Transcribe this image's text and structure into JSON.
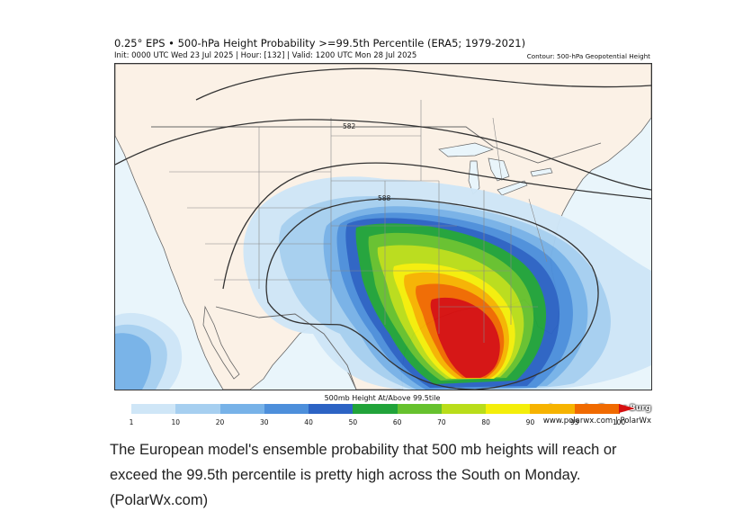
{
  "figure": {
    "title": "0.25° EPS • 500-hPa Height Probability >=99.5th Percentile (ERA5; 1979-2021)",
    "subtitle": "Init: 0000 UTC Wed 23 Jul 2025 | Hour: [132] | Valid: 1200 UTC Mon 28 Jul 2025",
    "contour_note": "Contour: 500-hPa Geopotential Height",
    "credit_line1": "Images by Tomer Burg",
    "credit_line2": "www.polarwx.com | PolarWx"
  },
  "map": {
    "contour_labels": [
      "582",
      "588"
    ],
    "colors": {
      "land": "#fbf1e6",
      "ocean": "#e9f5fb",
      "border": "#777777",
      "contour": "#333333"
    }
  },
  "colorbar": {
    "title": "500mb Height At/Above 99.5tile",
    "ticks": [
      "1",
      "10",
      "20",
      "30",
      "40",
      "50",
      "60",
      "70",
      "80",
      "90",
      "95",
      "100"
    ],
    "colors": [
      "#cfe6f7",
      "#a6cff0",
      "#77b2e8",
      "#4d8fdb",
      "#2c63c4",
      "#21a33a",
      "#66c12e",
      "#b9dd1a",
      "#f4ee0a",
      "#f6b300",
      "#f06a00",
      "#d61010"
    ]
  },
  "caption": "The European model's ensemble probability that 500 mb heights will reach or exceed the 99.5th percentile is pretty high across the South on Monday. (PolarWx.com)"
}
